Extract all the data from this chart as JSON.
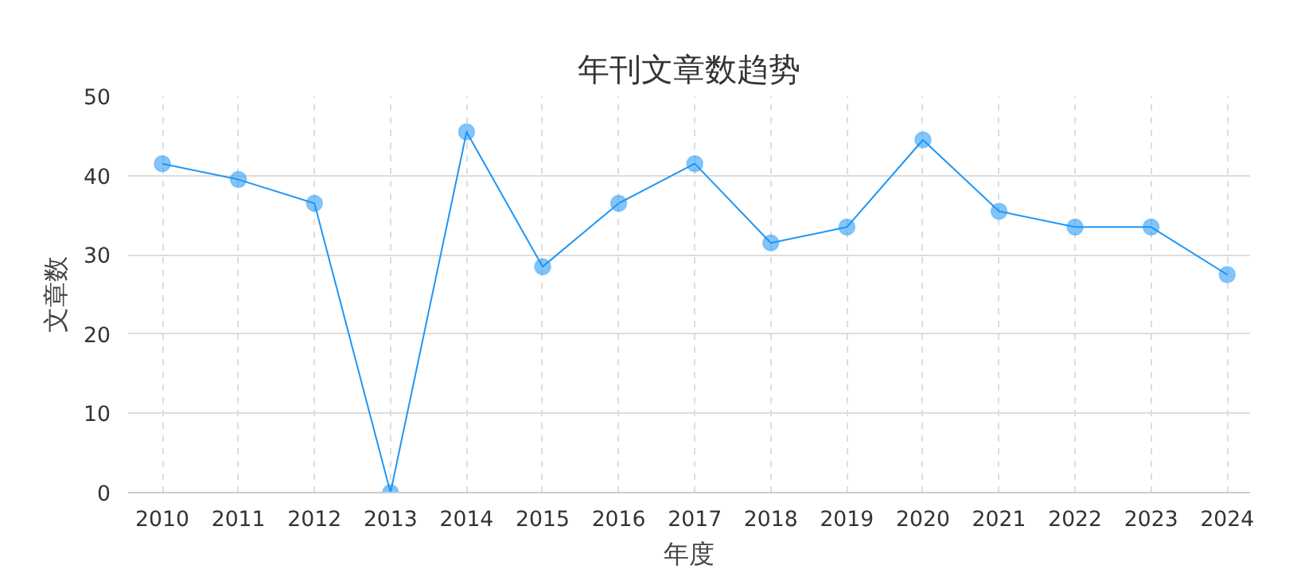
{
  "chart_data": {
    "type": "line",
    "title": "年刊文章数趋势",
    "xlabel": "年度",
    "ylabel": "文章数",
    "categories": [
      "2010",
      "2011",
      "2012",
      "2013",
      "2014",
      "2015",
      "2016",
      "2017",
      "2018",
      "2019",
      "2020",
      "2021",
      "2022",
      "2023",
      "2024"
    ],
    "series": [
      {
        "color": "#1e96f5",
        "values": [
          41.5,
          39.5,
          36.5,
          0,
          45.5,
          28.5,
          36.5,
          41.5,
          31.5,
          33.5,
          44.5,
          35.5,
          33.5,
          33.5,
          27.5
        ]
      }
    ],
    "ylim": [
      0,
      50
    ],
    "yticks": [
      0,
      10,
      20,
      30,
      40,
      50
    ],
    "grid": true,
    "marker": "circle",
    "line_style": "solid"
  }
}
